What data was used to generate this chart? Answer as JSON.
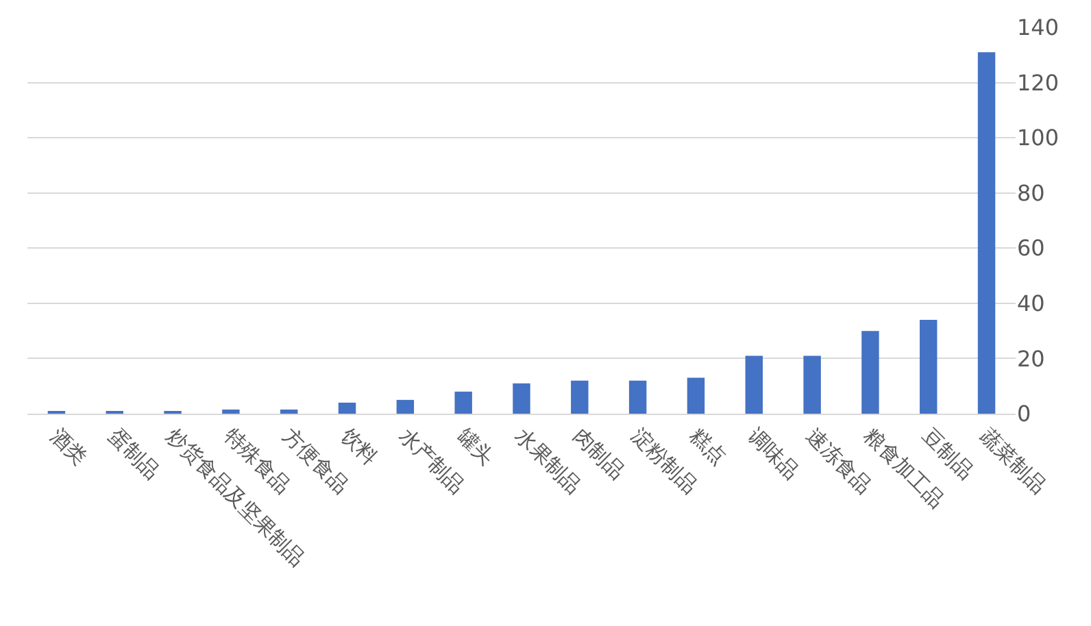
{
  "chart_data": {
    "type": "bar",
    "categories": [
      "酒类",
      "蛋制品",
      "炒货食品及坚果制品",
      "特殊食品",
      "方便食品",
      "饮料",
      "水产制品",
      "罐头",
      "水果制品",
      "肉制品",
      "淀粉制品",
      "糕点",
      "调味品",
      "速冻食品",
      "粮食加工品",
      "豆制品",
      "蔬菜制品"
    ],
    "values": [
      0.5,
      0.5,
      0.5,
      1.5,
      1.5,
      4,
      5,
      8,
      11,
      12,
      12,
      13,
      21,
      21,
      30,
      34,
      131
    ],
    "color": "#4472c4",
    "ylim": [
      0,
      140
    ],
    "yticks": [
      0,
      20,
      40,
      60,
      80,
      100,
      120,
      140
    ],
    "grid": "y"
  }
}
